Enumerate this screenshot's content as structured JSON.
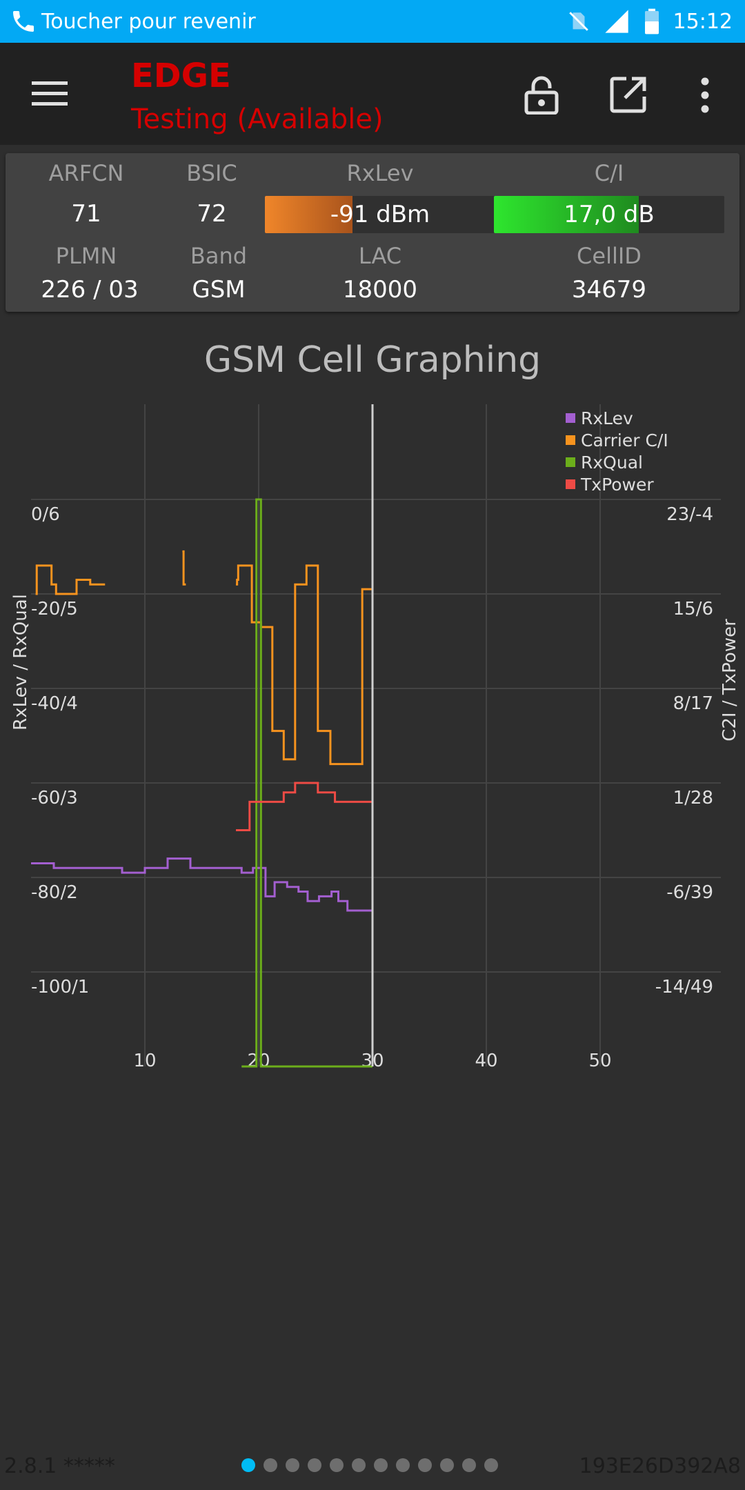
{
  "status_bar": {
    "text": "Toucher pour revenir",
    "time": "15:12",
    "icons": [
      "phone-icon",
      "no-sim-icon",
      "signal-icon",
      "battery-icon"
    ]
  },
  "app_bar": {
    "network_type": "EDGE",
    "network_status": "Testing (Available)",
    "accent_color": "#d50000",
    "icons": [
      "menu-icon",
      "lock-open-icon",
      "open-external-icon",
      "more-vert-icon"
    ]
  },
  "cell_info": {
    "arfcn": {
      "label": "ARFCN",
      "value": "71"
    },
    "bsic": {
      "label": "BSIC",
      "value": "72"
    },
    "rxlev": {
      "label": "RxLev",
      "value": "-91 dBm",
      "fill": 0.38,
      "color": "#f0862a"
    },
    "ci": {
      "label": "C/I",
      "value": "17,0 dB",
      "fill": 0.63,
      "color": "#2ee62e"
    },
    "plmn": {
      "label": "PLMN",
      "value": "226 / 03"
    },
    "band": {
      "label": "Band",
      "value": "GSM"
    },
    "lac": {
      "label": "LAC",
      "value": "18000"
    },
    "cellid": {
      "label": "CellID",
      "value": "34679"
    }
  },
  "chart_title": "GSM Cell Graphing",
  "chart_data": {
    "type": "line",
    "title": "GSM Cell Graphing",
    "xlabel": "",
    "ylabel_left": "RxLev / RxQual",
    "ylabel_right": "C2I / TxPower",
    "x_ticks": [
      "10",
      "20",
      "30",
      "40",
      "50"
    ],
    "xlim": [
      0,
      60
    ],
    "ylim_left": [
      -110,
      20
    ],
    "y_ticks_left": [
      "0/6",
      "-20/5",
      "-40/4",
      "-60/3",
      "-80/2",
      "-100/1"
    ],
    "y_ticks_right": [
      "23/-4",
      "15/6",
      "8/17",
      "1/28",
      "-6/39",
      "-14/49"
    ],
    "current_x": 30,
    "legend_position": "top-right",
    "grid": true,
    "series": [
      {
        "name": "RxLev",
        "color": "#a35fd0",
        "step": true,
        "points": [
          [
            0,
            -77
          ],
          [
            2,
            -78
          ],
          [
            7,
            -78
          ],
          [
            8,
            -79
          ],
          [
            9.5,
            -79
          ],
          [
            10,
            -78
          ],
          [
            11.5,
            -78
          ],
          [
            12,
            -76
          ],
          [
            13,
            -76
          ],
          [
            14,
            -78
          ],
          [
            18,
            -78
          ],
          [
            18.5,
            -79
          ],
          [
            19.3,
            -79
          ],
          [
            19.5,
            -78
          ],
          [
            20.5,
            -78
          ],
          [
            20.6,
            -84
          ],
          [
            21,
            -84
          ],
          [
            21.4,
            -81
          ],
          [
            22,
            -81
          ],
          [
            22.5,
            -82
          ],
          [
            23,
            -82
          ],
          [
            23.5,
            -83
          ],
          [
            24,
            -83
          ],
          [
            24.3,
            -85
          ],
          [
            24.8,
            -85
          ],
          [
            25.3,
            -84
          ],
          [
            26,
            -84
          ],
          [
            26.4,
            -83
          ],
          [
            26.8,
            -83
          ],
          [
            27,
            -85
          ],
          [
            27.5,
            -85
          ],
          [
            27.8,
            -87
          ],
          [
            29.8,
            -87
          ],
          [
            30,
            -86
          ]
        ]
      },
      {
        "name": "Carrier C/I",
        "color": "#f7931e",
        "step": true,
        "segments": [
          [
            [
              0.4,
              -20
            ],
            [
              0.5,
              -14
            ],
            [
              1.7,
              -14
            ],
            [
              1.8,
              -18
            ],
            [
              2,
              -18
            ],
            [
              2.2,
              -20
            ],
            [
              3.9,
              -20
            ],
            [
              4,
              -17
            ],
            [
              5,
              -17
            ],
            [
              5.2,
              -18
            ],
            [
              6.5,
              -18
            ]
          ],
          [
            [
              13.3,
              -11
            ],
            [
              13.4,
              -18
            ],
            [
              13.6,
              -18
            ]
          ],
          [
            [
              18,
              -18
            ],
            [
              18.1,
              -17
            ],
            [
              18.2,
              -14
            ],
            [
              19.3,
              -14
            ],
            [
              19.4,
              -26
            ],
            [
              20,
              -26
            ],
            [
              20.2,
              -27
            ],
            [
              21,
              -27
            ],
            [
              21.2,
              -49
            ],
            [
              22,
              -49
            ],
            [
              22.2,
              -55
            ],
            [
              23,
              -55
            ],
            [
              23.2,
              -18
            ],
            [
              24,
              -18
            ],
            [
              24.2,
              -14
            ],
            [
              25,
              -14
            ],
            [
              25.2,
              -49
            ],
            [
              26,
              -49
            ],
            [
              26.3,
              -56
            ],
            [
              28,
              -56
            ],
            [
              28.3,
              -56
            ],
            [
              29,
              -56
            ],
            [
              29.1,
              -19
            ],
            [
              30,
              -19
            ]
          ]
        ]
      },
      {
        "name": "RxQual",
        "color": "#6cae1b",
        "step": true,
        "points": [
          [
            18.5,
            -120
          ],
          [
            19.7,
            -120
          ],
          [
            19.8,
            0
          ],
          [
            20.1,
            0
          ],
          [
            20.2,
            -120
          ],
          [
            30,
            -120
          ]
        ]
      },
      {
        "name": "TxPower",
        "color": "#ee4b45",
        "step": true,
        "points": [
          [
            18,
            -70
          ],
          [
            19,
            -70
          ],
          [
            19.2,
            -64
          ],
          [
            22,
            -64
          ],
          [
            22.2,
            -62
          ],
          [
            23,
            -62
          ],
          [
            23.2,
            -60
          ],
          [
            25,
            -60
          ],
          [
            25.2,
            -62
          ],
          [
            26.5,
            -62
          ],
          [
            26.7,
            -64
          ],
          [
            30,
            -64
          ]
        ]
      }
    ]
  },
  "footer": {
    "version": "2.8.1 *****",
    "device_id": "193E26D392A8",
    "pages": 12,
    "active_page": 0
  }
}
